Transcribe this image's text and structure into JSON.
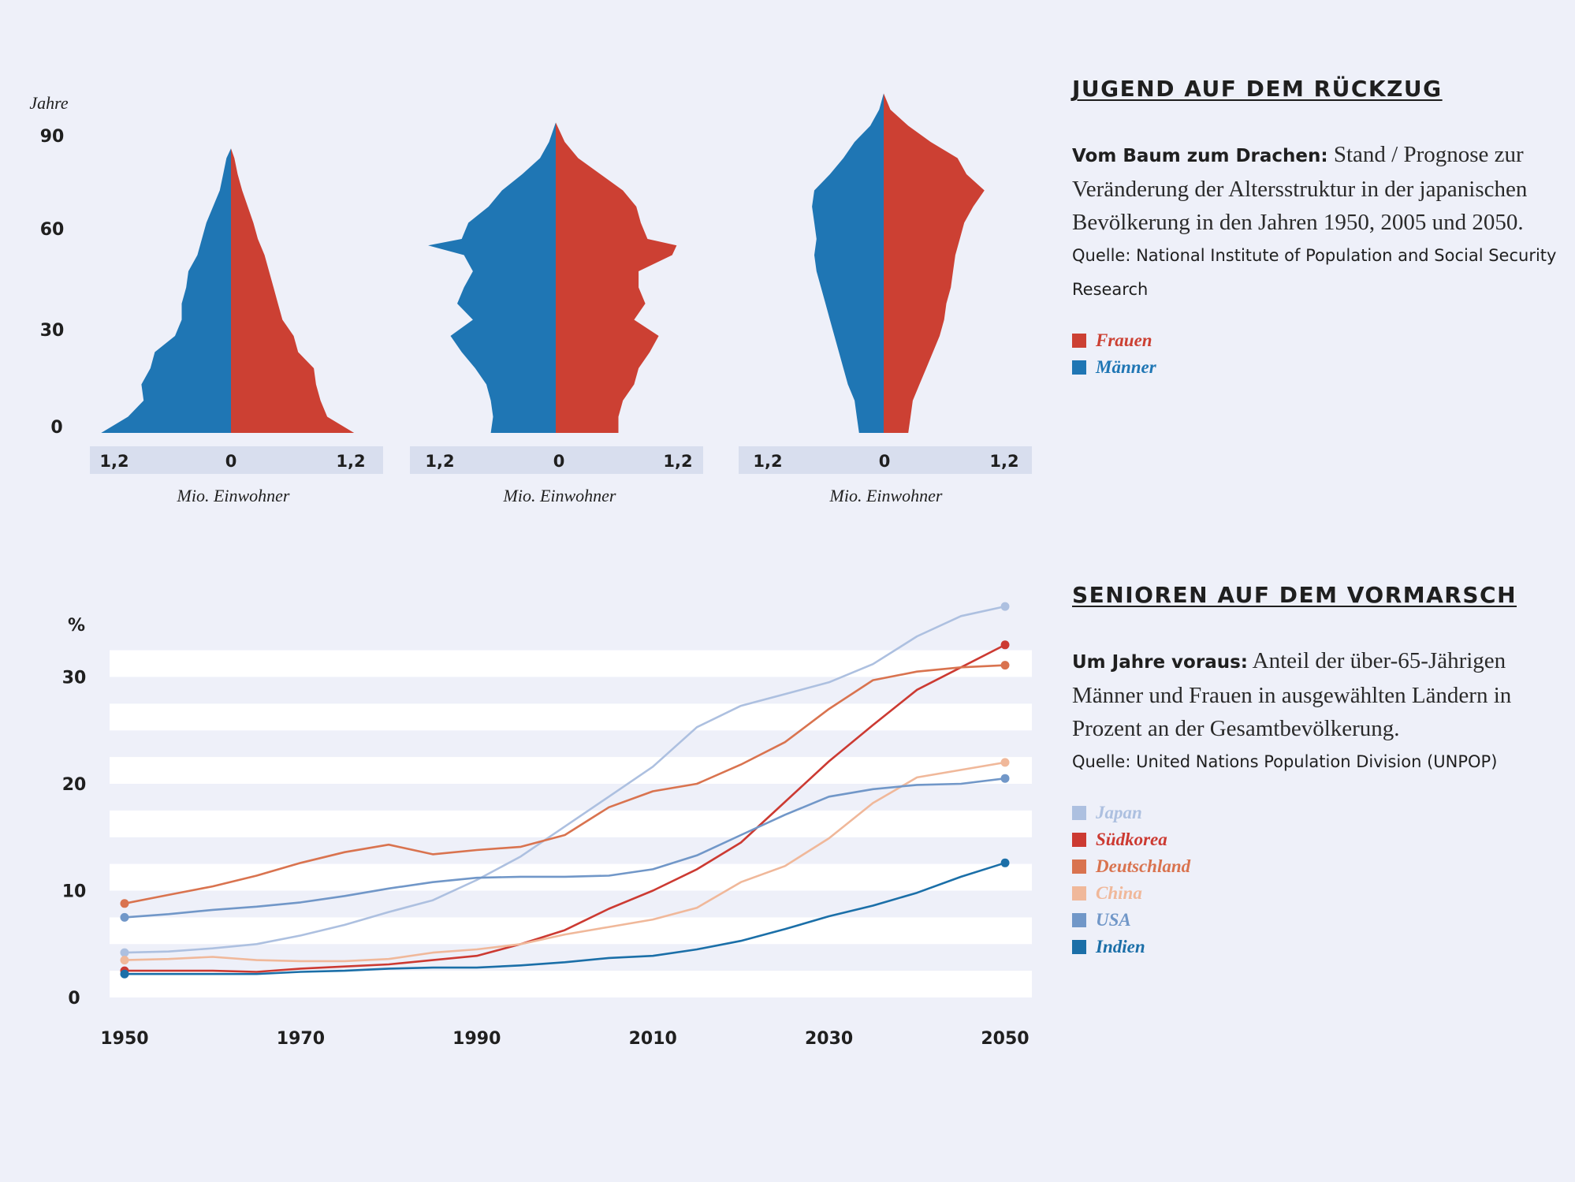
{
  "colors": {
    "background": "#eef0f9",
    "frauen": "#cc4033",
    "maenner": "#1f76b4",
    "axis_band": "#d8deee",
    "japan": "#adc0e0",
    "suedkorea": "#cc3a32",
    "deutschland": "#d9734f",
    "china": "#f0b89a",
    "usa": "#7197c8",
    "indien": "#1b6fa8"
  },
  "pyramids": {
    "y_axis_title": "Jahre",
    "y_ticks": [
      "90",
      "60",
      "30",
      "0"
    ],
    "x_tick_labels": [
      "1,2",
      "0",
      "1,2"
    ],
    "x_axis_title": "Mio. Einwohner"
  },
  "top_panel": {
    "heading": "JUGEND AUF DEM RÜCKZUG",
    "lead": "Vom Baum zum Drachen:",
    "text": " Stand / Prognose zur Veränderung der Altersstruktur in der japanischen Bevölkerung in den Jahren 1950, 2005 und 2050.",
    "source": "Quelle: National Institute of Population and Social Security Research",
    "legend": [
      {
        "label": "Frauen",
        "color": "#cc4033"
      },
      {
        "label": "Männer",
        "color": "#1f76b4"
      }
    ]
  },
  "bottom_panel": {
    "heading": "SENIOREN AUF DEM VORMARSCH",
    "lead": "Um Jahre voraus:",
    "text": " Anteil der über-65-Jährigen Männer und Frauen in ausgewählten Ländern in Prozent an der Gesamtbevölkerung.",
    "source": "Quelle: United Nations Population Division (UNPOP)",
    "legend": [
      {
        "label": "Japan",
        "color": "#adc0e0"
      },
      {
        "label": "Südkorea",
        "color": "#cc3a32"
      },
      {
        "label": "Deutschland",
        "color": "#d9734f"
      },
      {
        "label": "China",
        "color": "#f0b89a"
      },
      {
        "label": "USA",
        "color": "#7197c8"
      },
      {
        "label": "Indien",
        "color": "#1b6fa8"
      }
    ]
  },
  "chart_data": [
    {
      "type": "area",
      "subtype": "population-pyramid",
      "ylabel": "Jahre",
      "xlabel": "Mio. Einwohner",
      "ylim": [
        0,
        90
      ],
      "xlim": [
        -1.2,
        1.2
      ],
      "ages": [
        0,
        5,
        10,
        15,
        20,
        25,
        30,
        35,
        40,
        45,
        50,
        55,
        60,
        65,
        70,
        75,
        80,
        85,
        88
      ],
      "maenner": [
        1.16,
        0.92,
        0.78,
        0.8,
        0.72,
        0.68,
        0.5,
        0.44,
        0.44,
        0.4,
        0.38,
        0.3,
        0.26,
        0.22,
        0.16,
        0.1,
        0.07,
        0.04,
        0.0
      ],
      "frauen": [
        1.1,
        0.86,
        0.8,
        0.76,
        0.74,
        0.6,
        0.56,
        0.46,
        0.42,
        0.38,
        0.34,
        0.3,
        0.24,
        0.2,
        0.15,
        0.1,
        0.06,
        0.03,
        0.0
      ]
    },
    {
      "type": "area",
      "subtype": "population-pyramid",
      "ylabel": "Jahre",
      "xlabel": "Mio. Einwohner",
      "ylim": [
        0,
        90
      ],
      "xlim": [
        -1.2,
        1.2
      ],
      "ages": [
        0,
        5,
        10,
        15,
        20,
        25,
        30,
        35,
        40,
        45,
        50,
        55,
        58,
        60,
        65,
        70,
        75,
        80,
        85,
        90,
        96
      ],
      "maenner": [
        0.58,
        0.56,
        0.58,
        0.62,
        0.72,
        0.84,
        0.94,
        0.74,
        0.88,
        0.82,
        0.74,
        0.82,
        1.14,
        0.84,
        0.78,
        0.6,
        0.48,
        0.3,
        0.14,
        0.06,
        0.0
      ],
      "frauen": [
        0.56,
        0.56,
        0.6,
        0.7,
        0.74,
        0.84,
        0.92,
        0.7,
        0.8,
        0.74,
        0.74,
        1.04,
        1.08,
        0.82,
        0.76,
        0.72,
        0.6,
        0.4,
        0.2,
        0.08,
        0.0
      ]
    },
    {
      "type": "area",
      "subtype": "population-pyramid",
      "ylabel": "Jahre",
      "xlabel": "Mio. Einwohner",
      "ylim": [
        0,
        90
      ],
      "xlim": [
        -1.2,
        1.2
      ],
      "ages": [
        0,
        5,
        10,
        15,
        20,
        25,
        30,
        35,
        40,
        45,
        50,
        55,
        60,
        65,
        70,
        75,
        80,
        85,
        90,
        95,
        100,
        105
      ],
      "maenner": [
        0.22,
        0.24,
        0.26,
        0.32,
        0.36,
        0.4,
        0.44,
        0.48,
        0.52,
        0.56,
        0.6,
        0.62,
        0.6,
        0.62,
        0.64,
        0.62,
        0.48,
        0.36,
        0.26,
        0.12,
        0.04,
        0.0
      ],
      "frauen": [
        0.22,
        0.24,
        0.26,
        0.32,
        0.38,
        0.44,
        0.5,
        0.54,
        0.56,
        0.6,
        0.62,
        0.64,
        0.68,
        0.72,
        0.8,
        0.9,
        0.74,
        0.66,
        0.42,
        0.22,
        0.06,
        0.0
      ]
    },
    {
      "type": "line",
      "ylabel": "%",
      "x_ticks": [
        1950,
        1970,
        1990,
        2010,
        2030,
        2050
      ],
      "y_ticks": [
        0,
        10,
        20,
        30
      ],
      "xlim": [
        1950,
        2050
      ],
      "ylim": [
        0,
        37
      ],
      "x": [
        1950,
        1955,
        1960,
        1965,
        1970,
        1975,
        1980,
        1985,
        1990,
        1995,
        2000,
        2005,
        2010,
        2015,
        2020,
        2025,
        2030,
        2035,
        2040,
        2045,
        2050
      ],
      "series": [
        {
          "name": "Japan",
          "color": "#adc0e0",
          "values": [
            4.2,
            4.3,
            4.6,
            5.0,
            5.8,
            6.8,
            8.0,
            9.1,
            11.0,
            13.2,
            16.0,
            18.8,
            21.6,
            25.3,
            27.3,
            28.4,
            29.5,
            31.2,
            33.8,
            35.7,
            36.6
          ]
        },
        {
          "name": "Südkorea",
          "color": "#cc3a32",
          "values": [
            2.5,
            2.5,
            2.5,
            2.4,
            2.7,
            2.9,
            3.1,
            3.5,
            3.9,
            5.0,
            6.3,
            8.3,
            10.0,
            12.0,
            14.5,
            18.3,
            22.1,
            25.5,
            28.8,
            30.9,
            33.0
          ]
        },
        {
          "name": "Deutschland",
          "color": "#d9734f",
          "values": [
            8.8,
            9.6,
            10.4,
            11.4,
            12.6,
            13.6,
            14.3,
            13.4,
            13.8,
            14.1,
            15.2,
            17.8,
            19.3,
            20.0,
            21.8,
            23.9,
            27.0,
            29.7,
            30.5,
            30.9,
            31.1
          ]
        },
        {
          "name": "China",
          "color": "#f0b89a",
          "values": [
            3.5,
            3.6,
            3.8,
            3.5,
            3.4,
            3.4,
            3.6,
            4.2,
            4.5,
            5.0,
            5.9,
            6.6,
            7.3,
            8.4,
            10.8,
            12.3,
            14.9,
            18.2,
            20.6,
            21.3,
            22.0
          ]
        },
        {
          "name": "USA",
          "color": "#7197c8",
          "values": [
            7.5,
            7.8,
            8.2,
            8.5,
            8.9,
            9.5,
            10.2,
            10.8,
            11.2,
            11.3,
            11.3,
            11.4,
            12.0,
            13.3,
            15.2,
            17.1,
            18.8,
            19.5,
            19.9,
            20.0,
            20.5
          ]
        },
        {
          "name": "Indien",
          "color": "#1b6fa8",
          "values": [
            2.2,
            2.2,
            2.2,
            2.2,
            2.4,
            2.5,
            2.7,
            2.8,
            2.8,
            3.0,
            3.3,
            3.7,
            3.9,
            4.5,
            5.3,
            6.4,
            7.6,
            8.6,
            9.8,
            11.3,
            12.6
          ]
        }
      ]
    }
  ]
}
